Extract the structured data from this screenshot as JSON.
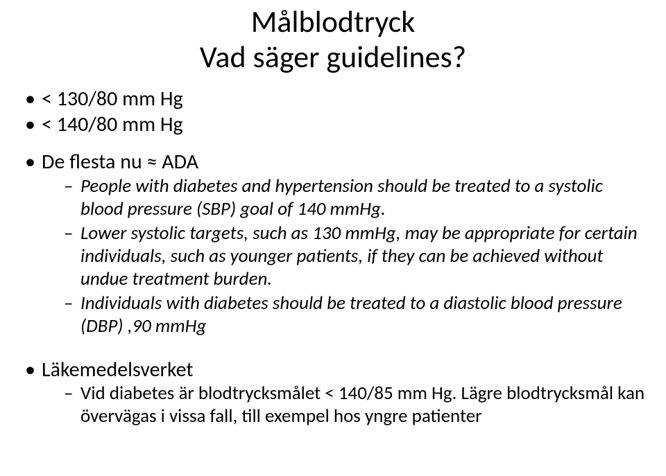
{
  "title": {
    "line1": "Målblodtryck",
    "line2": "Vad säger guidelines?",
    "fontsize": 44,
    "color": "#000000"
  },
  "body": {
    "fontsize_level1": 30,
    "fontsize_level2": 27,
    "color": "#000000"
  },
  "bullets": {
    "b1": "< 130/80 mm Hg",
    "b2": "< 140/80 mm Hg",
    "b3": "De flesta nu ≈ ADA",
    "b3_sub1": "People with diabetes and hypertension should be treated to a systolic blood pressure (SBP) goal of 140 mmHg.",
    "b3_sub2": "Lower systolic targets, such as 130 mmHg, may be appropriate for certain individuals, such as younger patients, if they can be achieved without undue treatment burden.",
    "b3_sub3": " Individuals with diabetes should be treated to a diastolic blood pressure (DBP) ,90 mmHg",
    "b4": "Läkemedelsverket",
    "b4_sub1": "Vid diabetes är blodtrycksmålet < 140/85 mm Hg. Lägre blodtrycksmål kan övervägas i vissa fall, till exempel hos yngre patienter"
  },
  "background_color": "#ffffff"
}
